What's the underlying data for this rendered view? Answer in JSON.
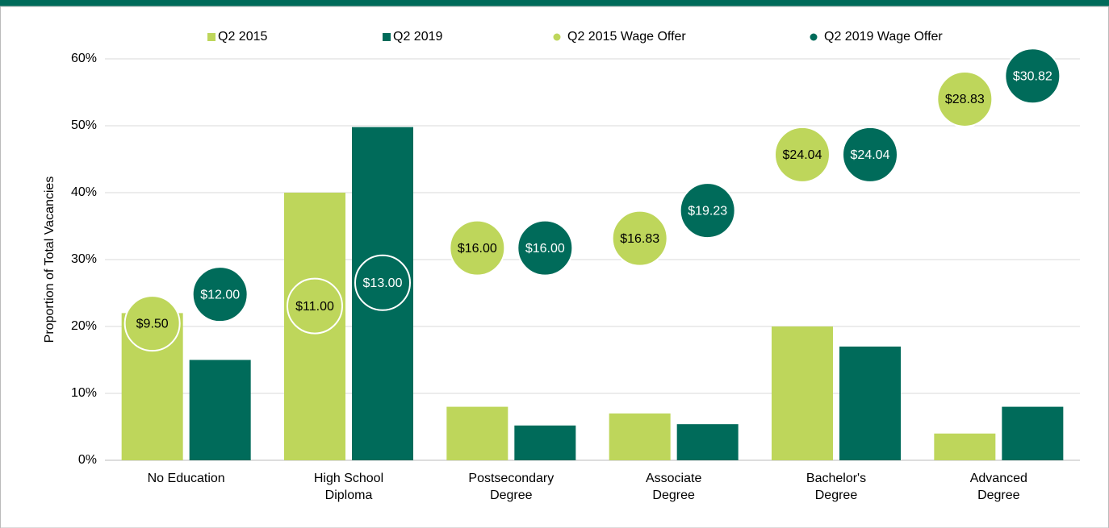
{
  "chart_data": {
    "type": "bar",
    "categories": [
      "No Education",
      "High School Diploma",
      "Postsecondary Degree",
      "Associate Degree",
      "Bachelor's Degree",
      "Advanced Degree"
    ],
    "y_label": "Proportion of Total Vacancies",
    "ylim": [
      0,
      60
    ],
    "yticks": [
      {
        "value": 0,
        "label": "0%"
      },
      {
        "value": 10,
        "label": "10%"
      },
      {
        "value": 20,
        "label": "20%"
      },
      {
        "value": 30,
        "label": "30%"
      },
      {
        "value": 40,
        "label": "40%"
      },
      {
        "value": 50,
        "label": "50%"
      },
      {
        "value": 60,
        "label": "60%"
      }
    ],
    "y2lim": [
      -2.3,
      32.3
    ],
    "grid": true,
    "series": [
      {
        "name": "Q2 2015",
        "color": "#bed65b",
        "values": [
          22,
          40,
          8,
          7,
          20,
          4
        ]
      },
      {
        "name": "Q2 2019",
        "color": "#006b5a",
        "values": [
          15,
          49.8,
          5.2,
          5.4,
          17,
          8
        ]
      },
      {
        "name": "Q2 2015 Wage Offer",
        "color": "#bed65b",
        "axis": "y2",
        "type": "bubble",
        "values": [
          9.5,
          11,
          16,
          16.83,
          24.04,
          28.83
        ],
        "value_labels": [
          "$9.50",
          "$11.00",
          "$16.00",
          "$16.83",
          "$24.04",
          "$28.83"
        ]
      },
      {
        "name": "Q2 2019 Wage Offer",
        "color": "#006b5a",
        "axis": "y2",
        "type": "bubble",
        "values": [
          12,
          13,
          16,
          19.23,
          24.04,
          30.82
        ],
        "value_labels": [
          "$12.00",
          "$13.00",
          "$16.00",
          "$19.23",
          "$24.04",
          "$30.82"
        ]
      }
    ]
  }
}
